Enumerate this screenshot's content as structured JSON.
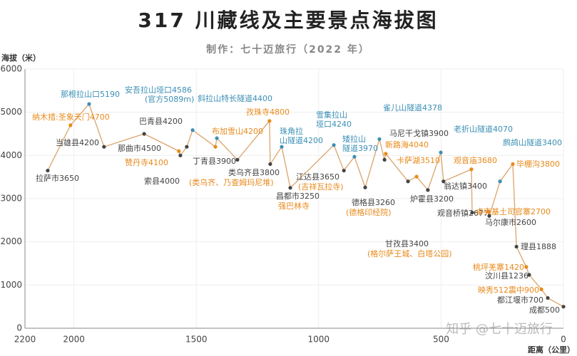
{
  "chart_data": {
    "type": "line",
    "title": "317 川藏线及主要景点海拔图",
    "subtitle": "制作：七十迈旅行（2022 年）",
    "y_label": "海拔（米）",
    "x_label": "距离（公里）",
    "watermark": "知乎 @七十迈旅行",
    "xlim": [
      2200,
      0
    ],
    "xticks": [
      2200,
      2000,
      1500,
      1000,
      500,
      0
    ],
    "ylim": [
      0,
      6000
    ],
    "yticks": [
      0,
      1000,
      2000,
      3000,
      4000,
      5000,
      6000
    ],
    "grid": true,
    "line_color": "#dba46c",
    "series": [
      {
        "x": [
          2107,
          2014,
          1938,
          1877,
          1713,
          1571,
          1565,
          1539,
          1515,
          1422,
          1416,
          1332,
          1201,
          1198,
          1151,
          1116,
          938,
          897,
          854,
          810,
          752,
          731,
          726,
          635,
          600,
          554,
          501,
          490,
          376,
          373,
          306,
          303,
          259,
          207,
          192,
          152,
          140,
          90,
          64,
          0
        ],
        "values": [
          3650,
          4700,
          5190,
          4200,
          4500,
          4100,
          4000,
          4200,
          4586,
          4200,
          4400,
          3900,
          4800,
          3800,
          4200,
          3250,
          4240,
          3650,
          3970,
          3260,
          4378,
          3900,
          4040,
          3400,
          3510,
          3200,
          4070,
          3400,
          3680,
          2677,
          2700,
          2600,
          3400,
          3800,
          1888,
          1420,
          1236,
          900,
          700,
          500
        ],
        "labels": [
          "拉萨市3650",
          "纳木措:圣象天门4700",
          "那根拉山口5190",
          "当雄县4200",
          "那曲市4500",
          "赞丹寺4100",
          "索县4000",
          "巴青县4200",
          [
            "安吾拉山垭口4586",
            "(官方5089m)"
          ],
          "布加雪山4200",
          "斜拉山特长隧道4400",
          "丁青县3900",
          "孜珠寺4800",
          "类乌齐县3800",
          [
            "珠角拉",
            "山隧道4200"
          ],
          "昌都市3250",
          [
            "雪集拉山",
            "垭口4240"
          ],
          "江达县3650",
          [
            "矮拉山",
            "隧道3970"
          ],
          "德格县3260",
          "雀儿山隧道4378",
          "马尼干戈镇3900",
          "新路海4040",
          "甘孜县3400",
          "卡萨湖3510",
          "炉霍县3200",
          "老折山隧道4070",
          "翁达镇3400",
          "观音庙3680",
          "观音桥镇2677",
          "卓克基土司官寨2700",
          "马尔康市2600",
          "鹧鸪山隧道3400",
          "毕棚沟3800",
          "理县1888",
          "桃坪羌寨1420",
          "汶川县1236",
          "映秀512震中900",
          "都江堰市700",
          "成都500"
        ],
        "notes": [
          null,
          null,
          null,
          null,
          null,
          null,
          null,
          null,
          null,
          null,
          null,
          null,
          null,
          "(类乌齐、乃查姆玛尼堆)",
          null,
          "强巴林寺",
          null,
          "(吉祥瓦拉寺)",
          null,
          "(德格印经院)",
          null,
          null,
          null,
          "(格尔萨王城、白塔公园)",
          null,
          null,
          null,
          null,
          null,
          null,
          null,
          null,
          null,
          null,
          null,
          null,
          null,
          null,
          null,
          null
        ],
        "colors": [
          "#444444",
          "#e8891a",
          "#3b8fb5",
          "#444444",
          "#444444",
          "#e8891a",
          "#444444",
          "#444444",
          "#3b8fb5",
          "#e8891a",
          "#3b8fb5",
          "#444444",
          "#e8891a",
          "#444444",
          "#3b8fb5",
          "#444444",
          "#3b8fb5",
          "#444444",
          "#3b8fb5",
          "#444444",
          "#3b8fb5",
          "#444444",
          "#e8891a",
          "#444444",
          "#e8891a",
          "#444444",
          "#3b8fb5",
          "#444444",
          "#e8891a",
          "#444444",
          "#e8891a",
          "#444444",
          "#3b8fb5",
          "#e8891a",
          "#444444",
          "#e8891a",
          "#444444",
          "#e8891a",
          "#444444",
          "#444444"
        ]
      }
    ]
  }
}
